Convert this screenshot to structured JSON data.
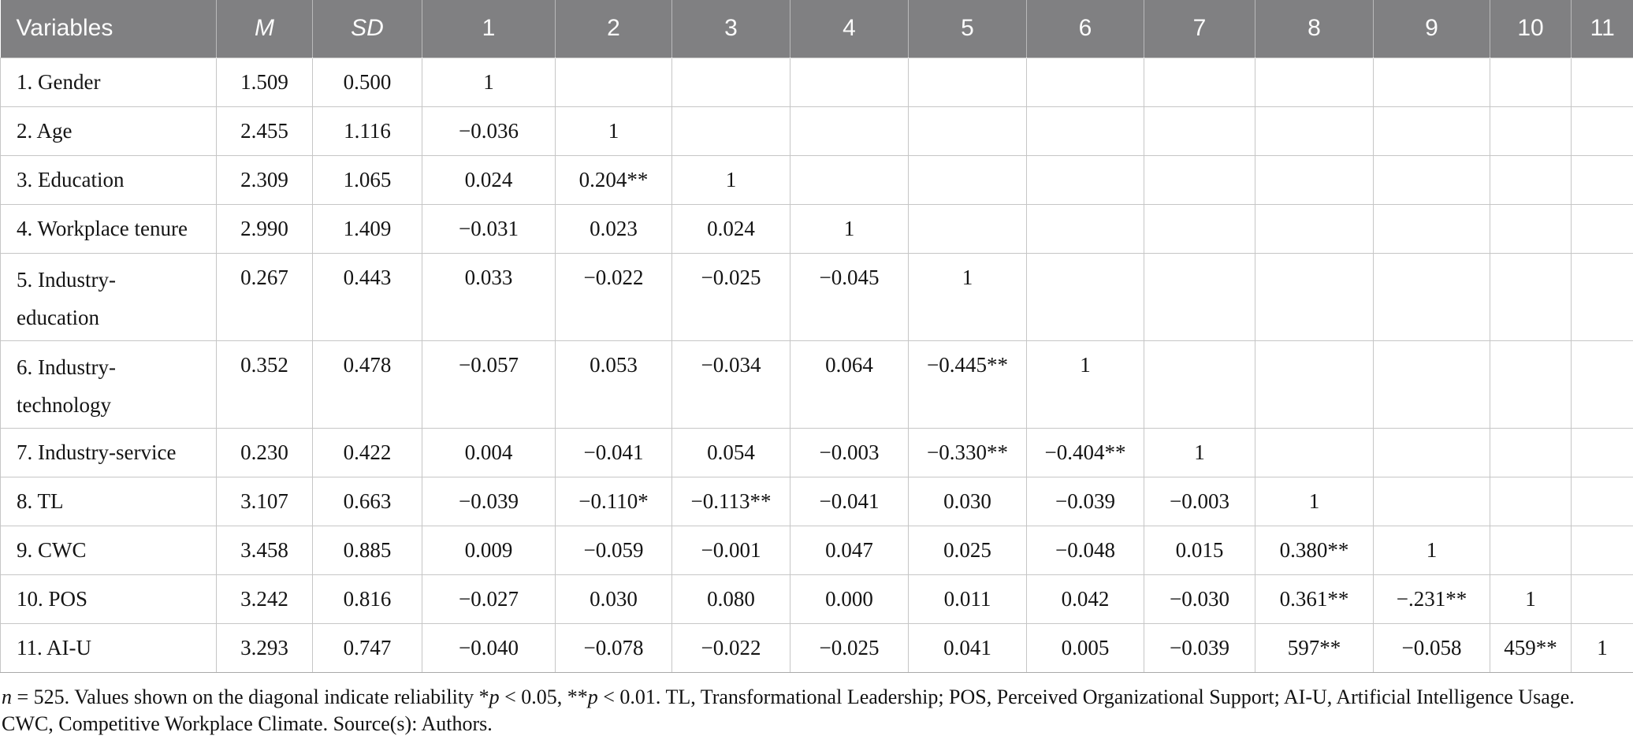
{
  "columns": [
    "Variables",
    "M",
    "SD",
    "1",
    "2",
    "3",
    "4",
    "5",
    "6",
    "7",
    "8",
    "9",
    "10",
    "11"
  ],
  "table": {
    "rows": [
      {
        "label": "1. Gender",
        "m": "1.509",
        "sd": "0.500",
        "values": [
          "1",
          "",
          "",
          "",
          "",
          "",
          "",
          "",
          "",
          "",
          ""
        ]
      },
      {
        "label": "2. Age",
        "m": "2.455",
        "sd": "1.116",
        "values": [
          "−0.036",
          "1",
          "",
          "",
          "",
          "",
          "",
          "",
          "",
          "",
          ""
        ]
      },
      {
        "label": "3. Education",
        "m": "2.309",
        "sd": "1.065",
        "values": [
          "0.024",
          "0.204**",
          "1",
          "",
          "",
          "",
          "",
          "",
          "",
          "",
          ""
        ]
      },
      {
        "label": "4. Workplace tenure",
        "m": "2.990",
        "sd": "1.409",
        "values": [
          "−0.031",
          "0.023",
          "0.024",
          "1",
          "",
          "",
          "",
          "",
          "",
          "",
          ""
        ]
      },
      {
        "label": "5. Industry-\neducation",
        "tall": true,
        "m": "0.267",
        "sd": "0.443",
        "values": [
          "0.033",
          "−0.022",
          "−0.025",
          "−0.045",
          "1",
          "",
          "",
          "",
          "",
          "",
          ""
        ]
      },
      {
        "label": "6. Industry-\ntechnology",
        "tall": true,
        "m": "0.352",
        "sd": "0.478",
        "values": [
          "−0.057",
          "0.053",
          "−0.034",
          "0.064",
          "−0.445**",
          "1",
          "",
          "",
          "",
          "",
          ""
        ]
      },
      {
        "label": "7. Industry-service",
        "m": "0.230",
        "sd": "0.422",
        "values": [
          "0.004",
          "−0.041",
          "0.054",
          "−0.003",
          "−0.330**",
          "−0.404**",
          "1",
          "",
          "",
          "",
          ""
        ]
      },
      {
        "label": "8. TL",
        "m": "3.107",
        "sd": "0.663",
        "values": [
          "−0.039",
          "−0.110*",
          "−0.113**",
          "−0.041",
          "0.030",
          "−0.039",
          "−0.003",
          "1",
          "",
          "",
          ""
        ]
      },
      {
        "label": "9. CWC",
        "m": "3.458",
        "sd": "0.885",
        "values": [
          "0.009",
          "−0.059",
          "−0.001",
          "0.047",
          "0.025",
          "−0.048",
          "0.015",
          "0.380**",
          "1",
          "",
          ""
        ]
      },
      {
        "label": "10. POS",
        "m": "3.242",
        "sd": "0.816",
        "values": [
          "−0.027",
          "0.030",
          "0.080",
          "0.000",
          "0.011",
          "0.042",
          "−0.030",
          "0.361**",
          "−.231**",
          "1",
          ""
        ]
      },
      {
        "label": "11. AI-U",
        "m": "3.293",
        "sd": "0.747",
        "values": [
          "−0.040",
          "−0.078",
          "−0.022",
          "−0.025",
          "0.041",
          "0.005",
          "−0.039",
          "597**",
          "−0.058",
          "459**",
          "1"
        ]
      }
    ]
  },
  "footnote": {
    "line1_parts": [
      {
        "text": "n",
        "italic": true
      },
      {
        "text": " = 525. Values shown on the diagonal indicate reliability *",
        "italic": false
      },
      {
        "text": "p",
        "italic": true
      },
      {
        "text": " < 0.05, **",
        "italic": false
      },
      {
        "text": "p",
        "italic": true
      },
      {
        "text": " < 0.01. TL, Transformational Leadership; POS, Perceived Organizational Support; AI-U, Artificial Intelligence Usage.",
        "italic": false
      }
    ],
    "line2": "CWC, Competitive Workplace Climate. Source(s): Authors."
  },
  "colors": {
    "header_bg": "#808082",
    "header_text": "#fcfcfc",
    "body_text": "#141414",
    "grid_border": "#c6c6c6"
  },
  "sample_size": "525"
}
